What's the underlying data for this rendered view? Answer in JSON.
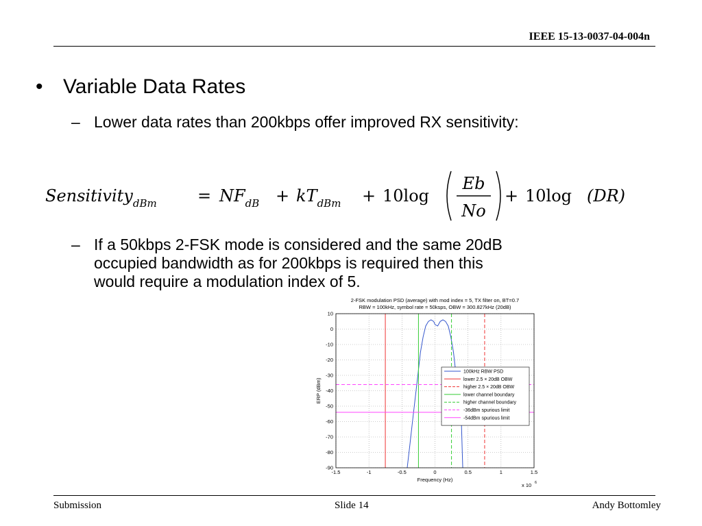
{
  "header": {
    "doc_id": "IEEE 15-13-0037-04-004n"
  },
  "body": {
    "bullet": "•",
    "dash": "–",
    "heading": "Variable Data Rates",
    "sub1": "Lower data rates than 200kbps offer improved RX sensitivity:",
    "sub2_lines": [
      "If a 50kbps 2-FSK mode is considered and the same 20dB",
      "occupied bandwidth as for 200kbps is required then this",
      "would require a modulation index of 5."
    ]
  },
  "formula": {
    "lhs": "Sensitivity",
    "lhs_sub": "dBm",
    "eq": "=",
    "nf": "NF",
    "nf_sub": "dB",
    "plus": "+",
    "kt": "kT",
    "kt_sub": "dBm",
    "ten_log": "10log",
    "numer": "Eb",
    "denom": "No",
    "dr": "(DR)"
  },
  "chart_data": {
    "type": "line",
    "title": "2-FSK modulation PSD (average) with mod index = 5, TX filter on, BT=0.7",
    "subtitle": "RBW = 100kHz, symbol rate = 50ksps, OBW = 300.827kHz (20dB)",
    "xlabel": "Frequency (Hz)",
    "ylabel": "ERP (dBm)",
    "x_exponent": "x 10",
    "x_exponent_power": "6",
    "xlim": [
      -1.5,
      1.5
    ],
    "ylim": [
      -90,
      10
    ],
    "xticks": [
      "-1.5",
      "-1",
      "-0.5",
      "0",
      "0.5",
      "1",
      "1.5"
    ],
    "yticks": [
      "10",
      "0",
      "-10",
      "-20",
      "-30",
      "-40",
      "-50",
      "-60",
      "-70",
      "-80",
      "-90"
    ],
    "grid": true,
    "legend_position": "right",
    "series": [
      {
        "name": "100kHz RBW PSD",
        "color": "#3355cc",
        "style": "solid",
        "x": [
          -0.42,
          -0.38,
          -0.34,
          -0.3,
          -0.26,
          -0.22,
          -0.18,
          -0.14,
          -0.1,
          -0.06,
          -0.02,
          0.0,
          0.04,
          0.08,
          0.12,
          0.16,
          0.2,
          0.24,
          0.28,
          0.32,
          0.36,
          0.4,
          0.42
        ],
        "y": [
          -90,
          -75,
          -60,
          -45,
          -30,
          -15,
          -5,
          2,
          5,
          6,
          5,
          3,
          2,
          5,
          6,
          5,
          2,
          -5,
          -15,
          -30,
          -45,
          -60,
          -90
        ]
      },
      {
        "name": "lower 2.5 × 20dB OBW",
        "color": "#ee3333",
        "style": "solid",
        "vertical_x": -0.752
      },
      {
        "name": "higher 2.5 × 20dB OBW",
        "color": "#ee3333",
        "style": "dashed",
        "vertical_x": 0.752
      },
      {
        "name": "lower channel boundary",
        "color": "#33cc33",
        "style": "solid",
        "vertical_x": -0.25
      },
      {
        "name": "higher channel boundary",
        "color": "#33cc33",
        "style": "dashed",
        "vertical_x": 0.25
      },
      {
        "name": "-36dBm spurious limit",
        "color": "#ff44ff",
        "style": "dashed",
        "horizontal_y": -36
      },
      {
        "name": "-54dBm spurious limit",
        "color": "#ff44ff",
        "style": "solid",
        "horizontal_y": -54
      }
    ]
  },
  "footer": {
    "left": "Submission",
    "center": "Slide 14",
    "right": "Andy Bottomley"
  }
}
